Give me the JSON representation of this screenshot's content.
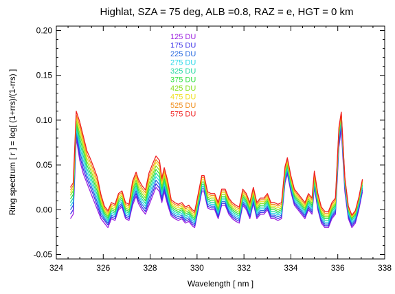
{
  "chart_data": {
    "type": "line",
    "title": "Highlat, SZA = 75 deg, ALB =0.8, RAZ = e, HGT = 0 km",
    "xlabel": "Wavelength [ nm ]",
    "ylabel": "Ring spectrum [ r ] = log[ (1+rrs)/(1-rrs) ]",
    "xlim": [
      324,
      338
    ],
    "ylim": [
      -0.055,
      0.205
    ],
    "xticks": [
      324,
      326,
      328,
      330,
      332,
      334,
      336,
      338
    ],
    "yticks": [
      -0.05,
      0.0,
      0.05,
      0.1,
      0.15,
      0.2
    ],
    "xtick_labels": [
      "324",
      "326",
      "328",
      "330",
      "332",
      "334",
      "336",
      "338"
    ],
    "ytick_labels": [
      "-0.05",
      "0.00",
      "0.05",
      "0.10",
      "0.15",
      "0.20"
    ],
    "legend_position": "top-left inside plot",
    "x": [
      324.6,
      324.72,
      324.85,
      325.0,
      325.15,
      325.3,
      325.45,
      325.6,
      325.75,
      325.9,
      326.05,
      326.2,
      326.35,
      326.5,
      326.65,
      326.8,
      326.95,
      327.1,
      327.25,
      327.4,
      327.5,
      327.65,
      327.8,
      327.95,
      328.1,
      328.25,
      328.4,
      328.5,
      328.6,
      328.75,
      328.9,
      329.05,
      329.2,
      329.35,
      329.5,
      329.65,
      329.8,
      329.9,
      330.05,
      330.2,
      330.3,
      330.45,
      330.6,
      330.75,
      330.9,
      331.05,
      331.2,
      331.35,
      331.5,
      331.65,
      331.8,
      331.95,
      332.1,
      332.25,
      332.4,
      332.55,
      332.7,
      332.85,
      333.0,
      333.15,
      333.3,
      333.45,
      333.6,
      333.75,
      333.85,
      334.0,
      334.15,
      334.3,
      334.45,
      334.6,
      334.75,
      334.9,
      335.0,
      335.15,
      335.3,
      335.45,
      335.6,
      335.75,
      335.9,
      336.05,
      336.15,
      336.3,
      336.45,
      336.6,
      336.75,
      336.9,
      337.05
    ],
    "series": [
      {
        "name": "125 DU",
        "color": "#9b20e0",
        "values": [
          -0.01,
          -0.005,
          0.08,
          0.055,
          0.04,
          0.03,
          0.02,
          0.01,
          0.0,
          -0.01,
          -0.015,
          -0.02,
          -0.01,
          -0.012,
          0.0,
          0.003,
          -0.01,
          -0.012,
          0.005,
          0.015,
          0.007,
          0.0,
          -0.005,
          0.005,
          0.015,
          0.025,
          0.02,
          0.008,
          0.02,
          0.005,
          -0.007,
          -0.01,
          -0.012,
          -0.01,
          -0.015,
          -0.013,
          -0.018,
          -0.02,
          0.0,
          0.02,
          0.02,
          0.002,
          0.0,
          0.0,
          -0.01,
          0.005,
          0.005,
          -0.005,
          -0.01,
          -0.013,
          -0.015,
          0.005,
          0.0,
          -0.01,
          0.007,
          -0.01,
          -0.005,
          -0.005,
          0.0,
          -0.01,
          -0.01,
          -0.012,
          -0.01,
          0.03,
          0.04,
          0.02,
          0.005,
          0.0,
          -0.005,
          -0.01,
          0.0,
          -0.005,
          0.025,
          0.0,
          -0.015,
          -0.02,
          -0.02,
          -0.01,
          -0.005,
          0.07,
          0.09,
          0.02,
          -0.01,
          -0.02,
          -0.015,
          0.0,
          0.02
        ]
      },
      {
        "name": "175 DU",
        "color": "#3a30e8",
        "values": [
          -0.005,
          0.0,
          0.085,
          0.06,
          0.045,
          0.034,
          0.025,
          0.015,
          0.004,
          -0.007,
          -0.012,
          -0.017,
          -0.008,
          -0.01,
          0.002,
          0.005,
          -0.008,
          -0.01,
          0.008,
          0.018,
          0.01,
          0.003,
          -0.002,
          0.009,
          0.019,
          0.029,
          0.024,
          0.011,
          0.023,
          0.008,
          -0.005,
          -0.008,
          -0.01,
          -0.008,
          -0.013,
          -0.011,
          -0.016,
          -0.018,
          0.002,
          0.022,
          0.022,
          0.004,
          0.002,
          0.002,
          -0.008,
          0.007,
          0.007,
          -0.003,
          -0.008,
          -0.011,
          -0.013,
          0.007,
          0.002,
          -0.008,
          0.009,
          -0.008,
          -0.003,
          -0.003,
          0.002,
          -0.008,
          -0.008,
          -0.01,
          -0.008,
          0.032,
          0.042,
          0.022,
          0.007,
          0.002,
          -0.003,
          -0.008,
          0.002,
          -0.003,
          0.027,
          0.002,
          -0.013,
          -0.018,
          -0.018,
          -0.008,
          -0.003,
          0.074,
          0.094,
          0.024,
          -0.008,
          -0.018,
          -0.013,
          0.002,
          0.022
        ]
      },
      {
        "name": "225 DU",
        "color": "#2468e0",
        "values": [
          0.0,
          0.005,
          0.088,
          0.065,
          0.05,
          0.038,
          0.029,
          0.019,
          0.008,
          -0.004,
          -0.01,
          -0.015,
          -0.006,
          -0.008,
          0.004,
          0.007,
          -0.006,
          -0.008,
          0.011,
          0.021,
          0.013,
          0.006,
          0.001,
          0.013,
          0.023,
          0.033,
          0.028,
          0.014,
          0.026,
          0.011,
          -0.003,
          -0.006,
          -0.008,
          -0.006,
          -0.011,
          -0.009,
          -0.014,
          -0.016,
          0.004,
          0.024,
          0.024,
          0.006,
          0.004,
          0.004,
          -0.006,
          0.009,
          0.009,
          -0.001,
          -0.006,
          -0.009,
          -0.011,
          0.009,
          0.004,
          -0.006,
          0.011,
          -0.006,
          -0.001,
          -0.001,
          0.004,
          -0.006,
          -0.006,
          -0.008,
          -0.006,
          0.034,
          0.044,
          0.024,
          0.009,
          0.004,
          -0.001,
          -0.006,
          0.004,
          -0.001,
          0.029,
          0.004,
          -0.011,
          -0.016,
          -0.016,
          -0.006,
          -0.001,
          0.078,
          0.098,
          0.026,
          -0.006,
          -0.016,
          -0.011,
          0.004,
          0.024
        ]
      },
      {
        "name": "275 DU",
        "color": "#28d8e8",
        "values": [
          0.004,
          0.009,
          0.091,
          0.07,
          0.055,
          0.042,
          0.033,
          0.023,
          0.012,
          -0.001,
          -0.008,
          -0.013,
          -0.004,
          -0.006,
          0.006,
          0.009,
          -0.004,
          -0.006,
          0.014,
          0.024,
          0.016,
          0.009,
          0.004,
          0.017,
          0.027,
          0.037,
          0.032,
          0.017,
          0.029,
          0.014,
          -0.001,
          -0.004,
          -0.006,
          -0.004,
          -0.009,
          -0.007,
          -0.012,
          -0.014,
          0.006,
          0.026,
          0.026,
          0.008,
          0.006,
          0.006,
          -0.004,
          0.011,
          0.011,
          0.001,
          -0.004,
          -0.007,
          -0.009,
          0.011,
          0.006,
          -0.004,
          0.013,
          -0.004,
          0.001,
          0.001,
          0.006,
          -0.004,
          -0.004,
          -0.006,
          -0.004,
          0.036,
          0.046,
          0.026,
          0.011,
          0.006,
          0.001,
          -0.004,
          0.006,
          0.001,
          0.031,
          0.006,
          -0.009,
          -0.014,
          -0.014,
          -0.004,
          0.001,
          0.081,
          0.1,
          0.028,
          -0.004,
          -0.014,
          -0.009,
          0.006,
          0.026
        ]
      },
      {
        "name": "325 DU",
        "color": "#20d8a0",
        "values": [
          0.008,
          0.013,
          0.094,
          0.075,
          0.06,
          0.046,
          0.037,
          0.027,
          0.016,
          0.002,
          -0.006,
          -0.011,
          -0.002,
          -0.004,
          0.008,
          0.011,
          -0.002,
          -0.004,
          0.017,
          0.027,
          0.019,
          0.012,
          0.007,
          0.021,
          0.031,
          0.041,
          0.036,
          0.02,
          0.032,
          0.017,
          0.001,
          -0.002,
          -0.004,
          -0.002,
          -0.007,
          -0.005,
          -0.01,
          -0.012,
          0.008,
          0.028,
          0.028,
          0.01,
          0.008,
          0.008,
          -0.002,
          0.013,
          0.013,
          0.003,
          -0.002,
          -0.005,
          -0.007,
          0.013,
          0.008,
          -0.002,
          0.015,
          -0.002,
          0.003,
          0.003,
          0.008,
          -0.002,
          -0.002,
          -0.004,
          -0.002,
          0.038,
          0.048,
          0.028,
          0.013,
          0.008,
          0.003,
          -0.002,
          0.008,
          0.003,
          0.033,
          0.008,
          -0.007,
          -0.012,
          -0.012,
          -0.002,
          0.003,
          0.083,
          0.102,
          0.03,
          -0.002,
          -0.012,
          -0.007,
          0.008,
          0.028
        ]
      },
      {
        "name": "375 DU",
        "color": "#30e040",
        "values": [
          0.012,
          0.017,
          0.097,
          0.08,
          0.065,
          0.05,
          0.041,
          0.031,
          0.02,
          0.005,
          -0.004,
          -0.009,
          0.0,
          -0.002,
          0.01,
          0.013,
          0.0,
          -0.002,
          0.02,
          0.03,
          0.022,
          0.015,
          0.01,
          0.025,
          0.035,
          0.045,
          0.04,
          0.023,
          0.035,
          0.02,
          0.003,
          0.0,
          -0.002,
          0.0,
          -0.005,
          -0.003,
          -0.008,
          -0.01,
          0.01,
          0.03,
          0.03,
          0.012,
          0.01,
          0.01,
          0.0,
          0.015,
          0.015,
          0.005,
          0.0,
          -0.003,
          -0.005,
          0.015,
          0.01,
          0.0,
          0.017,
          0.0,
          0.005,
          0.005,
          0.01,
          0.0,
          0.0,
          -0.002,
          0.0,
          0.04,
          0.05,
          0.03,
          0.015,
          0.01,
          0.005,
          0.0,
          0.01,
          0.005,
          0.035,
          0.01,
          -0.005,
          -0.01,
          -0.01,
          0.0,
          0.005,
          0.085,
          0.104,
          0.032,
          0.0,
          -0.01,
          -0.005,
          0.01,
          0.03
        ]
      },
      {
        "name": "425 DU",
        "color": "#88e020",
        "values": [
          0.016,
          0.021,
          0.1,
          0.085,
          0.07,
          0.054,
          0.045,
          0.035,
          0.024,
          0.008,
          -0.002,
          -0.007,
          0.002,
          0.0,
          0.012,
          0.015,
          0.002,
          0.0,
          0.023,
          0.033,
          0.025,
          0.018,
          0.013,
          0.029,
          0.039,
          0.049,
          0.044,
          0.026,
          0.038,
          0.023,
          0.005,
          0.002,
          0.0,
          0.002,
          -0.003,
          -0.001,
          -0.006,
          -0.008,
          0.012,
          0.032,
          0.032,
          0.014,
          0.012,
          0.012,
          0.002,
          0.017,
          0.017,
          0.007,
          0.002,
          -0.001,
          -0.003,
          0.017,
          0.012,
          0.002,
          0.019,
          0.002,
          0.007,
          0.007,
          0.012,
          0.002,
          0.002,
          0.0,
          0.002,
          0.042,
          0.052,
          0.032,
          0.017,
          0.012,
          0.007,
          0.002,
          0.012,
          0.007,
          0.037,
          0.012,
          -0.003,
          -0.008,
          -0.008,
          0.002,
          0.007,
          0.087,
          0.106,
          0.033,
          0.001,
          -0.009,
          -0.004,
          0.011,
          0.031
        ]
      },
      {
        "name": "475 DU",
        "color": "#f0e020",
        "values": [
          0.019,
          0.024,
          0.103,
          0.09,
          0.074,
          0.058,
          0.049,
          0.039,
          0.028,
          0.011,
          0.0,
          -0.005,
          0.004,
          0.002,
          0.014,
          0.017,
          0.004,
          0.002,
          0.026,
          0.036,
          0.028,
          0.021,
          0.016,
          0.033,
          0.043,
          0.053,
          0.048,
          0.029,
          0.041,
          0.026,
          0.007,
          0.004,
          0.002,
          0.004,
          -0.001,
          0.001,
          -0.004,
          -0.006,
          0.014,
          0.034,
          0.034,
          0.016,
          0.014,
          0.014,
          0.004,
          0.019,
          0.019,
          0.009,
          0.004,
          0.001,
          -0.001,
          0.019,
          0.014,
          0.004,
          0.021,
          0.004,
          0.009,
          0.009,
          0.014,
          0.004,
          0.004,
          0.002,
          0.004,
          0.044,
          0.054,
          0.034,
          0.019,
          0.014,
          0.009,
          0.004,
          0.014,
          0.009,
          0.039,
          0.014,
          -0.001,
          -0.006,
          -0.006,
          0.004,
          0.009,
          0.089,
          0.107,
          0.034,
          0.002,
          -0.008,
          -0.003,
          0.012,
          0.032
        ]
      },
      {
        "name": "525 DU",
        "color": "#f09020",
        "values": [
          0.022,
          0.027,
          0.106,
          0.094,
          0.078,
          0.062,
          0.053,
          0.043,
          0.032,
          0.014,
          0.002,
          -0.003,
          0.006,
          0.004,
          0.016,
          0.019,
          0.006,
          0.004,
          0.029,
          0.039,
          0.031,
          0.024,
          0.019,
          0.037,
          0.047,
          0.056,
          0.051,
          0.032,
          0.044,
          0.029,
          0.009,
          0.006,
          0.004,
          0.006,
          0.001,
          0.003,
          -0.002,
          -0.004,
          0.016,
          0.036,
          0.036,
          0.018,
          0.016,
          0.016,
          0.006,
          0.021,
          0.021,
          0.011,
          0.006,
          0.003,
          0.001,
          0.021,
          0.016,
          0.006,
          0.023,
          0.006,
          0.011,
          0.011,
          0.016,
          0.006,
          0.006,
          0.004,
          0.006,
          0.046,
          0.056,
          0.036,
          0.021,
          0.016,
          0.011,
          0.006,
          0.016,
          0.011,
          0.041,
          0.016,
          0.001,
          -0.004,
          -0.004,
          0.006,
          0.011,
          0.09,
          0.108,
          0.035,
          0.003,
          -0.007,
          -0.002,
          0.013,
          0.033
        ]
      },
      {
        "name": "575 DU",
        "color": "#f02020",
        "values": [
          0.025,
          0.03,
          0.11,
          0.098,
          0.082,
          0.066,
          0.057,
          0.047,
          0.036,
          0.017,
          0.004,
          -0.001,
          0.008,
          0.006,
          0.018,
          0.021,
          0.008,
          0.006,
          0.032,
          0.042,
          0.034,
          0.027,
          0.022,
          0.041,
          0.051,
          0.06,
          0.055,
          0.035,
          0.047,
          0.032,
          0.011,
          0.008,
          0.006,
          0.008,
          0.003,
          0.005,
          0.0,
          -0.002,
          0.018,
          0.038,
          0.038,
          0.02,
          0.018,
          0.018,
          0.008,
          0.023,
          0.023,
          0.013,
          0.008,
          0.005,
          0.003,
          0.023,
          0.018,
          0.008,
          0.025,
          0.008,
          0.013,
          0.013,
          0.018,
          0.008,
          0.008,
          0.006,
          0.008,
          0.048,
          0.058,
          0.038,
          0.023,
          0.018,
          0.013,
          0.008,
          0.018,
          0.013,
          0.043,
          0.018,
          0.003,
          -0.002,
          -0.002,
          0.008,
          0.013,
          0.092,
          0.109,
          0.036,
          0.004,
          -0.006,
          -0.001,
          0.014,
          0.034
        ]
      }
    ]
  }
}
